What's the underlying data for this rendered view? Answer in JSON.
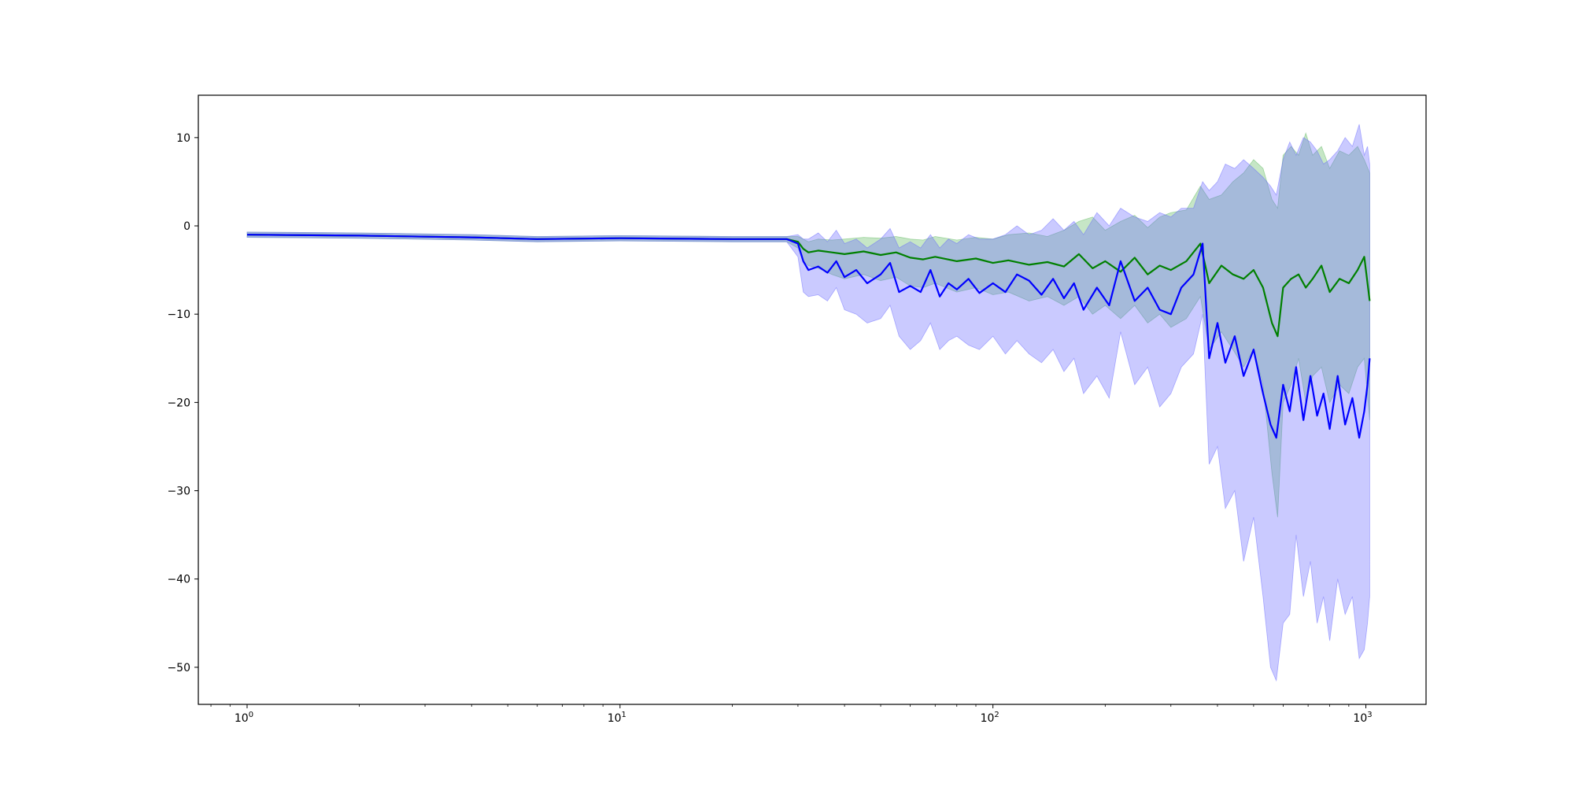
{
  "chart_data": {
    "type": "line",
    "title": "",
    "xlabel": "",
    "ylabel": "",
    "xscale": "log",
    "xlim": [
      0.74,
      1450
    ],
    "ylim": [
      -54.2,
      14.8
    ],
    "grid": false,
    "legend": "none",
    "x_ticks": [
      {
        "base": "10",
        "exp": "0",
        "value": 1
      },
      {
        "base": "10",
        "exp": "1",
        "value": 10
      },
      {
        "base": "10",
        "exp": "2",
        "value": 100
      },
      {
        "base": "10",
        "exp": "3",
        "value": 1000
      }
    ],
    "y_ticks": [
      {
        "label": "10",
        "value": 10
      },
      {
        "label": "0",
        "value": 0
      },
      {
        "label": "−10",
        "value": -10
      },
      {
        "label": "−20",
        "value": -20
      },
      {
        "label": "−30",
        "value": -30
      },
      {
        "label": "−40",
        "value": -40
      },
      {
        "label": "−50",
        "value": -50
      }
    ],
    "series": [
      {
        "color": "#008000",
        "band_color": "#5cb85c",
        "band_opacity": 0.35,
        "points": [
          [
            1,
            -1.0,
            -1.3,
            -0.7
          ],
          [
            2,
            -1.1,
            -1.4,
            -0.8
          ],
          [
            4,
            -1.3,
            -1.6,
            -1.0
          ],
          [
            6,
            -1.5,
            -1.8,
            -1.2
          ],
          [
            10,
            -1.4,
            -1.7,
            -1.1
          ],
          [
            20,
            -1.5,
            -1.8,
            -1.2
          ],
          [
            28,
            -1.5,
            -1.8,
            -1.2
          ],
          [
            30,
            -1.8,
            -2.5,
            -1.2
          ],
          [
            31,
            -2.6,
            -4.0,
            -1.5
          ],
          [
            32,
            -3.0,
            -4.5,
            -1.8
          ],
          [
            34,
            -2.8,
            -4.8,
            -1.5
          ],
          [
            37,
            -3.0,
            -5.5,
            -1.6
          ],
          [
            40,
            -3.2,
            -6.0,
            -1.5
          ],
          [
            45,
            -2.9,
            -5.5,
            -1.3
          ],
          [
            50,
            -3.3,
            -6.2,
            -1.4
          ],
          [
            55,
            -3.0,
            -5.8,
            -1.2
          ],
          [
            60,
            -3.6,
            -6.8,
            -1.5
          ],
          [
            65,
            -3.8,
            -7.0,
            -1.6
          ],
          [
            70,
            -3.5,
            -6.5,
            -1.2
          ],
          [
            80,
            -4.0,
            -7.5,
            -1.6
          ],
          [
            90,
            -3.7,
            -7.0,
            -1.3
          ],
          [
            100,
            -4.2,
            -7.8,
            -1.5
          ],
          [
            110,
            -3.9,
            -7.5,
            -1.0
          ],
          [
            125,
            -4.4,
            -8.5,
            -0.8
          ],
          [
            140,
            -4.1,
            -8.0,
            -1.2
          ],
          [
            155,
            -4.6,
            -9.0,
            -0.5
          ],
          [
            170,
            -3.2,
            -8.0,
            0.5
          ],
          [
            185,
            -4.8,
            -10.0,
            1.0
          ],
          [
            200,
            -4.0,
            -9.0,
            -0.5
          ],
          [
            220,
            -5.2,
            -10.5,
            0.5
          ],
          [
            240,
            -3.6,
            -9.0,
            1.2
          ],
          [
            260,
            -5.5,
            -11.0,
            -0.2
          ],
          [
            280,
            -4.5,
            -10.0,
            1.0
          ],
          [
            300,
            -5.0,
            -11.5,
            1.5
          ],
          [
            330,
            -4.0,
            -10.5,
            1.8
          ],
          [
            360,
            -2.0,
            -8.0,
            4.5
          ],
          [
            380,
            -6.5,
            -14.0,
            3.0
          ],
          [
            410,
            -4.5,
            -12.0,
            3.5
          ],
          [
            440,
            -5.5,
            -14.0,
            5.0
          ],
          [
            470,
            -6.0,
            -16.0,
            6.0
          ],
          [
            500,
            -5.0,
            -14.0,
            7.5
          ],
          [
            530,
            -7.0,
            -18.0,
            6.5
          ],
          [
            560,
            -11.0,
            -28.0,
            3.0
          ],
          [
            580,
            -12.5,
            -33.0,
            2.0
          ],
          [
            600,
            -7.0,
            -20.0,
            8.0
          ],
          [
            630,
            -6.0,
            -18.0,
            9.0
          ],
          [
            660,
            -5.5,
            -15.0,
            8.0
          ],
          [
            690,
            -7.0,
            -20.0,
            10.5
          ],
          [
            720,
            -6.0,
            -17.0,
            8.0
          ],
          [
            760,
            -4.5,
            -16.0,
            9.0
          ],
          [
            800,
            -7.5,
            -20.0,
            6.5
          ],
          [
            850,
            -6.0,
            -18.0,
            8.5
          ],
          [
            900,
            -6.5,
            -19.0,
            8.0
          ],
          [
            950,
            -5.0,
            -16.0,
            9.0
          ],
          [
            990,
            -3.5,
            -15.0,
            7.5
          ],
          [
            1024,
            -8.5,
            -22.0,
            6.0
          ]
        ]
      },
      {
        "color": "#0000ff",
        "band_color": "#6666ff",
        "band_opacity": 0.35,
        "points": [
          [
            1,
            -1.0,
            -1.3,
            -0.7
          ],
          [
            2,
            -1.1,
            -1.4,
            -0.8
          ],
          [
            4,
            -1.3,
            -1.6,
            -1.0
          ],
          [
            6,
            -1.5,
            -1.8,
            -1.2
          ],
          [
            10,
            -1.4,
            -1.7,
            -1.1
          ],
          [
            20,
            -1.5,
            -1.8,
            -1.2
          ],
          [
            28,
            -1.5,
            -1.8,
            -1.2
          ],
          [
            30,
            -2.0,
            -3.5,
            -1.0
          ],
          [
            31,
            -4.0,
            -7.5,
            -1.5
          ],
          [
            32,
            -5.0,
            -8.0,
            -1.5
          ],
          [
            34,
            -4.6,
            -7.8,
            -0.8
          ],
          [
            36,
            -5.3,
            -8.5,
            -1.8
          ],
          [
            38,
            -4.0,
            -7.0,
            -0.5
          ],
          [
            40,
            -5.8,
            -9.5,
            -2.0
          ],
          [
            43,
            -5.0,
            -10.0,
            -1.5
          ],
          [
            46,
            -6.5,
            -11.0,
            -2.5
          ],
          [
            50,
            -5.5,
            -10.5,
            -1.5
          ],
          [
            53,
            -4.2,
            -9.0,
            -0.3
          ],
          [
            56,
            -7.5,
            -12.5,
            -2.5
          ],
          [
            60,
            -6.8,
            -14.0,
            -1.8
          ],
          [
            64,
            -7.5,
            -13.0,
            -2.5
          ],
          [
            68,
            -5.0,
            -11.0,
            -1.0
          ],
          [
            72,
            -8.0,
            -14.0,
            -2.5
          ],
          [
            76,
            -6.5,
            -13.0,
            -1.5
          ],
          [
            80,
            -7.2,
            -12.5,
            -2.0
          ],
          [
            86,
            -6.0,
            -13.5,
            -1.0
          ],
          [
            92,
            -7.6,
            -14.0,
            -1.5
          ],
          [
            100,
            -6.5,
            -12.5,
            -1.5
          ],
          [
            108,
            -7.5,
            -14.5,
            -1.0
          ],
          [
            116,
            -5.5,
            -13.0,
            0.0
          ],
          [
            125,
            -6.2,
            -14.5,
            -1.0
          ],
          [
            135,
            -7.8,
            -15.5,
            -0.5
          ],
          [
            145,
            -6.0,
            -14.0,
            0.8
          ],
          [
            155,
            -8.2,
            -16.5,
            -0.5
          ],
          [
            165,
            -6.5,
            -15.0,
            0.5
          ],
          [
            175,
            -9.5,
            -19.0,
            -1.0
          ],
          [
            190,
            -7.0,
            -17.0,
            1.5
          ],
          [
            205,
            -9.0,
            -19.5,
            0.0
          ],
          [
            220,
            -4.0,
            -12.0,
            2.0
          ],
          [
            240,
            -8.5,
            -18.0,
            1.0
          ],
          [
            260,
            -7.0,
            -16.0,
            0.5
          ],
          [
            280,
            -9.5,
            -20.5,
            1.5
          ],
          [
            300,
            -10.0,
            -19.0,
            1.0
          ],
          [
            320,
            -7.0,
            -16.0,
            2.0
          ],
          [
            345,
            -5.5,
            -14.5,
            2.0
          ],
          [
            365,
            -2.0,
            -10.0,
            5.0
          ],
          [
            380,
            -15.0,
            -27.0,
            4.0
          ],
          [
            400,
            -11.0,
            -25.0,
            5.0
          ],
          [
            420,
            -15.5,
            -32.0,
            7.0
          ],
          [
            445,
            -12.5,
            -30.0,
            6.5
          ],
          [
            470,
            -17.0,
            -38.0,
            7.5
          ],
          [
            500,
            -14.0,
            -33.0,
            6.5
          ],
          [
            530,
            -19.0,
            -42.0,
            5.5
          ],
          [
            555,
            -22.5,
            -50.0,
            4.5
          ],
          [
            575,
            -24.0,
            -51.5,
            3.5
          ],
          [
            600,
            -18.0,
            -45.0,
            7.5
          ],
          [
            625,
            -21.0,
            -44.0,
            9.5
          ],
          [
            650,
            -16.0,
            -35.0,
            8.0
          ],
          [
            680,
            -22.0,
            -42.0,
            10.0
          ],
          [
            710,
            -17.0,
            -38.0,
            9.5
          ],
          [
            740,
            -21.5,
            -45.0,
            8.5
          ],
          [
            770,
            -19.0,
            -42.0,
            7.0
          ],
          [
            800,
            -23.0,
            -47.0,
            7.5
          ],
          [
            840,
            -17.0,
            -40.0,
            8.5
          ],
          [
            880,
            -22.5,
            -44.0,
            10.0
          ],
          [
            920,
            -19.5,
            -42.0,
            9.0
          ],
          [
            960,
            -24.0,
            -49.0,
            11.5
          ],
          [
            990,
            -21.0,
            -48.0,
            8.0
          ],
          [
            1010,
            -18.0,
            -45.0,
            9.0
          ],
          [
            1024,
            -15.0,
            -42.0,
            7.0
          ]
        ]
      }
    ]
  }
}
